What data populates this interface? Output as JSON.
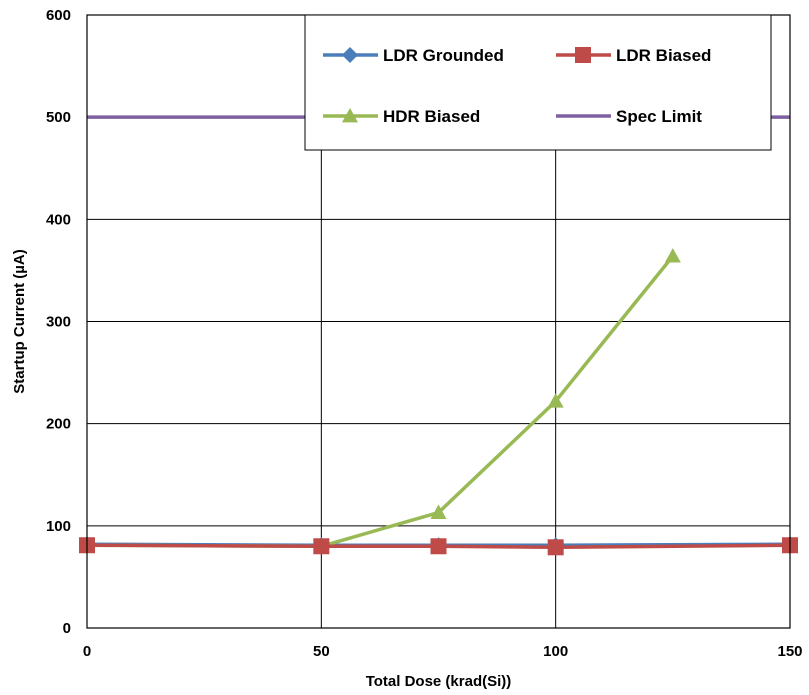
{
  "chart_data": {
    "type": "line",
    "xlabel": "Total Dose (krad(Si))",
    "ylabel": "Startup Current (µA)",
    "xlim": [
      0,
      150
    ],
    "ylim": [
      0,
      600
    ],
    "xticks": [
      0,
      50,
      100,
      150
    ],
    "yticks": [
      0,
      100,
      200,
      300,
      400,
      500,
      600
    ],
    "grid": true,
    "legend_position": "top-right",
    "series": [
      {
        "name": "LDR Grounded",
        "color": "#4a7ebb",
        "marker": "diamond",
        "x": [
          0,
          50,
          75,
          100,
          150
        ],
        "y": [
          82,
          81,
          81,
          81,
          82
        ]
      },
      {
        "name": "LDR Biased",
        "color": "#be4b48",
        "marker": "square",
        "x": [
          0,
          50,
          75,
          100,
          150
        ],
        "y": [
          81,
          80,
          80,
          79,
          81
        ]
      },
      {
        "name": "HDR Biased",
        "color": "#98b954",
        "marker": "triangle",
        "x": [
          0,
          50,
          75,
          100,
          125
        ],
        "y": [
          81,
          80,
          113,
          222,
          364
        ]
      },
      {
        "name": "Spec Limit",
        "color": "#7d60a0",
        "marker": "none",
        "x": [
          0,
          150
        ],
        "y": [
          500,
          500
        ]
      }
    ]
  }
}
